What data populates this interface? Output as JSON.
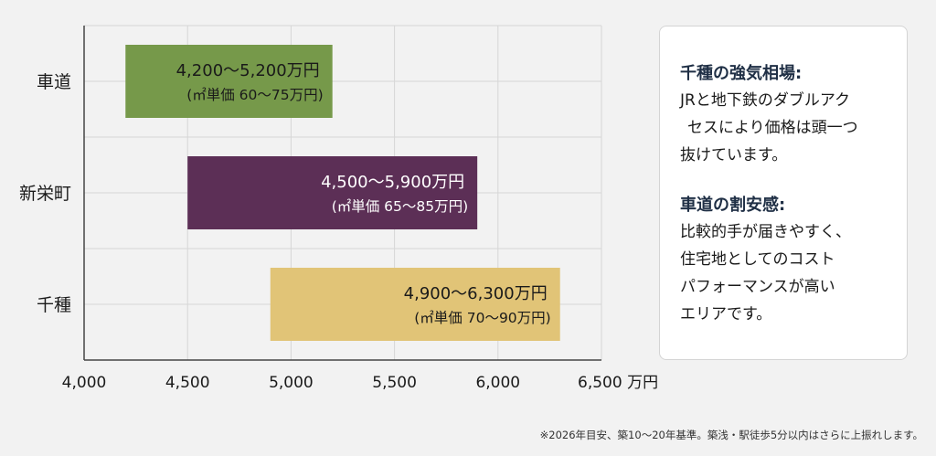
{
  "chart_data": {
    "type": "range-bar",
    "unit": "万円",
    "xlim": [
      4000,
      6500
    ],
    "xticks": [
      4000,
      4500,
      5000,
      5500,
      6000,
      6500
    ],
    "tick_labels": [
      "4,000",
      "4,500",
      "5,000",
      "5,500",
      "6,000",
      "6,500 万円"
    ],
    "categories": [
      "車道",
      "新栄町",
      "千種"
    ],
    "series": [
      {
        "category": "車道",
        "min": 4200,
        "max": 5200,
        "color": "#76994a",
        "label1": "4,200〜5,200万円",
        "label2": "(㎡単価 60〜75万円)"
      },
      {
        "category": "新栄町",
        "min": 4500,
        "max": 5900,
        "color": "#5c2f56",
        "label1": "4,500〜5,900万円",
        "label2": "(㎡単価 65〜85万円)"
      },
      {
        "category": "千種",
        "min": 4900,
        "max": 6300,
        "color": "#e1c477",
        "label1": "4,900〜6,300万円",
        "label2": "(㎡単価 70〜90万円)"
      }
    ],
    "grid": true
  },
  "side_card": {
    "heading1": "千種の強気相場:",
    "body1_lines": [
      "JRと地下鉄のダブルアク",
      "セスにより価格は頭一つ",
      "抜けています。"
    ],
    "heading2": "車道の割安感:",
    "body2_lines": [
      "比較的手が届きやすく、",
      "住宅地としてのコスト",
      "パフォーマンスが高い",
      "エリアです。"
    ]
  },
  "footnote": "※2026年目安、築10〜20年基準。築浅・駅徒歩5分以内はさらに上振れします。"
}
